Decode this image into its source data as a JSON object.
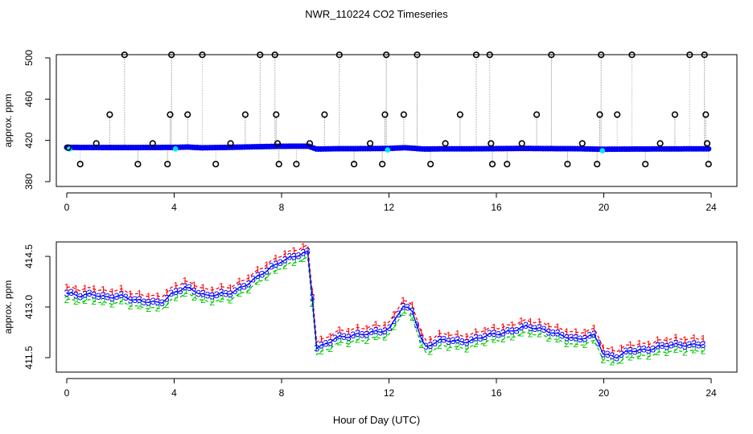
{
  "title": "NWR_110224  CO2 Timeseries",
  "xlabel": "Hour of Day (UTC)",
  "colors": {
    "bg": "#ffffff",
    "axis": "#000000",
    "raw_marker": "#000000",
    "raw_line": "#aaaaaa",
    "blue": "#0000ff",
    "cyan": "#00e5ff",
    "red": "#ff0000",
    "green": "#00c800",
    "navy": "#0000cc"
  },
  "chart_data": [
    {
      "type": "scatter",
      "ylabel": "approx. ppm",
      "xlim": [
        0,
        24
      ],
      "ylim": [
        380,
        500
      ],
      "xticks": [
        0,
        4,
        8,
        12,
        16,
        20,
        24
      ],
      "yticks": [
        380,
        420,
        460,
        500
      ],
      "grid": false,
      "series": [
        {
          "marker": "open-circle",
          "color": "black",
          "points": [
            [
              0.05,
              413
            ],
            [
              0.5,
              397
            ],
            [
              1.1,
              417
            ],
            [
              1.6,
              445
            ],
            [
              2.15,
              503
            ],
            [
              2.65,
              397
            ],
            [
              3.2,
              417
            ],
            [
              3.75,
              397
            ],
            [
              3.85,
              445
            ],
            [
              3.9,
              503
            ],
            [
              4.5,
              445
            ],
            [
              5.05,
              503
            ],
            [
              5.55,
              397
            ],
            [
              6.1,
              417
            ],
            [
              6.65,
              445
            ],
            [
              7.2,
              503
            ],
            [
              7.75,
              503
            ],
            [
              7.8,
              445
            ],
            [
              7.85,
              417
            ],
            [
              7.9,
              397
            ],
            [
              8.55,
              397
            ],
            [
              9.05,
              417
            ],
            [
              9.6,
              445
            ],
            [
              10.15,
              503
            ],
            [
              10.7,
              397
            ],
            [
              11.3,
              417
            ],
            [
              11.75,
              397
            ],
            [
              11.85,
              445
            ],
            [
              11.9,
              503
            ],
            [
              12.55,
              445
            ],
            [
              13.05,
              503
            ],
            [
              13.55,
              397
            ],
            [
              14.1,
              417
            ],
            [
              14.65,
              445
            ],
            [
              15.25,
              503
            ],
            [
              15.75,
              503
            ],
            [
              15.8,
              417
            ],
            [
              15.85,
              397
            ],
            [
              16.4,
              397
            ],
            [
              16.95,
              417
            ],
            [
              17.5,
              445
            ],
            [
              18.05,
              503
            ],
            [
              18.65,
              397
            ],
            [
              19.2,
              417
            ],
            [
              19.75,
              397
            ],
            [
              19.85,
              445
            ],
            [
              19.9,
              503
            ],
            [
              20.5,
              445
            ],
            [
              21.05,
              503
            ],
            [
              21.55,
              397
            ],
            [
              22.1,
              417
            ],
            [
              22.65,
              445
            ],
            [
              23.2,
              503
            ],
            [
              23.75,
              503
            ],
            [
              23.8,
              445
            ],
            [
              23.85,
              417
            ],
            [
              23.9,
              397
            ]
          ]
        },
        {
          "marker": "filled-circle",
          "color": "blue",
          "baseline": [
            [
              0,
              413.2
            ],
            [
              2,
              413.0
            ],
            [
              4,
              413.2
            ],
            [
              4.5,
              413.6
            ],
            [
              5,
              412.8
            ],
            [
              6,
              413.2
            ],
            [
              7,
              413.8
            ],
            [
              8,
              414.3
            ],
            [
              9,
              414.4
            ],
            [
              9.3,
              411.6
            ],
            [
              10,
              411.9
            ],
            [
              11,
              412.0
            ],
            [
              12,
              412.2
            ],
            [
              12.6,
              412.9
            ],
            [
              13.3,
              411.6
            ],
            [
              14,
              411.8
            ],
            [
              15,
              411.8
            ],
            [
              16,
              412.0
            ],
            [
              17,
              412.2
            ],
            [
              18,
              412.0
            ],
            [
              19,
              411.9
            ],
            [
              20,
              411.4
            ],
            [
              21,
              411.6
            ],
            [
              22,
              411.7
            ],
            [
              23.7,
              411.8
            ]
          ]
        }
      ]
    },
    {
      "type": "line",
      "ylabel": "approx. ppm",
      "xlim": [
        0,
        24
      ],
      "ylim": [
        411.2,
        414.5
      ],
      "xticks": [
        0,
        4,
        8,
        12,
        16,
        20,
        24
      ],
      "yticks": [
        411.5,
        413.0,
        414.5
      ],
      "grid": false,
      "series": [
        {
          "name": "1",
          "color": "red",
          "line": "dashed",
          "offset": 0.18,
          "values": [
            [
              0,
              413.4
            ],
            [
              0.5,
              413.3
            ],
            [
              1,
              413.4
            ],
            [
              1.5,
              413.3
            ],
            [
              2,
              413.3
            ],
            [
              2.5,
              413.2
            ],
            [
              3,
              413.2
            ],
            [
              3.5,
              413.1
            ],
            [
              4,
              413.4
            ],
            [
              4.4,
              413.6
            ],
            [
              4.8,
              413.5
            ],
            [
              5.2,
              413.3
            ],
            [
              6,
              413.4
            ],
            [
              7,
              413.8
            ],
            [
              8,
              414.4
            ],
            [
              8.5,
              414.5
            ],
            [
              9,
              414.6
            ],
            [
              9.3,
              411.8
            ],
            [
              9.6,
              411.9
            ],
            [
              10,
              412.1
            ],
            [
              10.5,
              412.1
            ],
            [
              11,
              412.2
            ],
            [
              11.5,
              412.3
            ],
            [
              12,
              412.3
            ],
            [
              12.5,
              413.0
            ],
            [
              12.9,
              412.9
            ],
            [
              13.3,
              411.8
            ],
            [
              13.6,
              411.9
            ],
            [
              14,
              412.0
            ],
            [
              15,
              412.0
            ],
            [
              16,
              412.2
            ],
            [
              17,
              412.4
            ],
            [
              18,
              412.3
            ],
            [
              19,
              412.0
            ],
            [
              19.7,
              412.2
            ],
            [
              20,
              411.6
            ],
            [
              20.5,
              411.5
            ],
            [
              21,
              411.7
            ],
            [
              22,
              411.8
            ],
            [
              23,
              411.9
            ],
            [
              23.7,
              411.9
            ]
          ]
        },
        {
          "name": "2",
          "color": "green",
          "line": "dashed",
          "offset": -0.18,
          "values": [
            [
              0,
              413.4
            ],
            [
              0.5,
              413.3
            ],
            [
              1,
              413.4
            ],
            [
              1.5,
              413.3
            ],
            [
              2,
              413.3
            ],
            [
              2.5,
              413.2
            ],
            [
              3,
              413.2
            ],
            [
              3.5,
              413.1
            ],
            [
              4,
              413.4
            ],
            [
              4.4,
              413.6
            ],
            [
              4.8,
              413.5
            ],
            [
              5.2,
              413.3
            ],
            [
              6,
              413.4
            ],
            [
              7,
              413.8
            ],
            [
              8,
              414.4
            ],
            [
              8.5,
              414.5
            ],
            [
              9,
              414.6
            ],
            [
              9.3,
              411.8
            ],
            [
              9.6,
              411.9
            ],
            [
              10,
              412.1
            ],
            [
              10.5,
              412.1
            ],
            [
              11,
              412.2
            ],
            [
              11.5,
              412.3
            ],
            [
              12,
              412.3
            ],
            [
              12.5,
              413.0
            ],
            [
              12.9,
              412.9
            ],
            [
              13.3,
              411.8
            ],
            [
              13.6,
              411.9
            ],
            [
              14,
              412.0
            ],
            [
              15,
              412.0
            ],
            [
              16,
              412.2
            ],
            [
              17,
              412.4
            ],
            [
              18,
              412.3
            ],
            [
              19,
              412.0
            ],
            [
              19.7,
              412.2
            ],
            [
              20,
              411.6
            ],
            [
              20.5,
              411.5
            ],
            [
              21,
              411.7
            ],
            [
              22,
              411.8
            ],
            [
              23,
              411.9
            ],
            [
              23.7,
              411.9
            ]
          ]
        },
        {
          "name": "3",
          "color": "blue",
          "line": "solid",
          "offset": 0,
          "values": [
            [
              0,
              413.4
            ],
            [
              0.5,
              413.3
            ],
            [
              1,
              413.4
            ],
            [
              1.5,
              413.3
            ],
            [
              2,
              413.3
            ],
            [
              2.5,
              413.2
            ],
            [
              3,
              413.2
            ],
            [
              3.5,
              413.1
            ],
            [
              4,
              413.4
            ],
            [
              4.4,
              413.6
            ],
            [
              4.8,
              413.5
            ],
            [
              5.2,
              413.3
            ],
            [
              6,
              413.4
            ],
            [
              7,
              413.8
            ],
            [
              8,
              414.4
            ],
            [
              8.5,
              414.5
            ],
            [
              9,
              414.6
            ],
            [
              9.3,
              411.8
            ],
            [
              9.6,
              411.9
            ],
            [
              10,
              412.1
            ],
            [
              10.5,
              412.1
            ],
            [
              11,
              412.2
            ],
            [
              11.5,
              412.3
            ],
            [
              12,
              412.3
            ],
            [
              12.5,
              413.0
            ],
            [
              12.9,
              412.9
            ],
            [
              13.3,
              411.8
            ],
            [
              13.6,
              411.9
            ],
            [
              14,
              412.0
            ],
            [
              15,
              412.0
            ],
            [
              16,
              412.2
            ],
            [
              17,
              412.4
            ],
            [
              18,
              412.3
            ],
            [
              19,
              412.0
            ],
            [
              19.7,
              412.2
            ],
            [
              20,
              411.6
            ],
            [
              20.5,
              411.5
            ],
            [
              21,
              411.7
            ],
            [
              22,
              411.8
            ],
            [
              23,
              411.9
            ],
            [
              23.7,
              411.9
            ]
          ]
        }
      ]
    }
  ]
}
